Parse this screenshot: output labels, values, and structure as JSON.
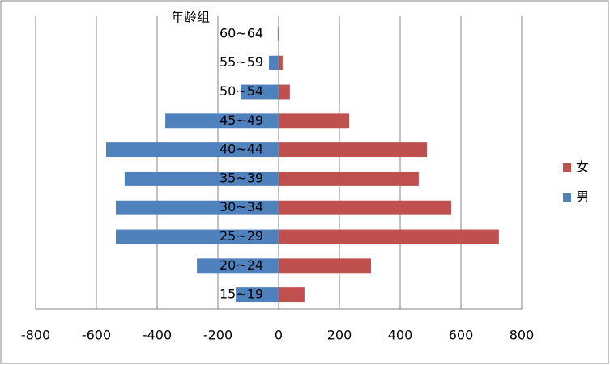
{
  "chart_data": {
    "type": "bar",
    "orientation": "horizontal",
    "stacked_diverging": true,
    "y_axis_title": "年龄组",
    "categories": [
      "15~19",
      "20~24",
      "25~29",
      "30~34",
      "35~39",
      "40~44",
      "45~49",
      "50~54",
      "55~59",
      "60~64"
    ],
    "series": [
      {
        "name": "男",
        "color": "#4f81bd",
        "values": [
          -141,
          -269,
          -536,
          -536,
          -507,
          -568,
          -373,
          -123,
          -32,
          -3
        ]
      },
      {
        "name": "女",
        "color": "#c0504d",
        "values": [
          85,
          304,
          725,
          568,
          461,
          488,
          232,
          37,
          13,
          2
        ]
      }
    ],
    "xlim": [
      -800,
      800
    ],
    "xticks": [
      -800,
      -600,
      -400,
      -200,
      0,
      200,
      400,
      600,
      800
    ],
    "grid": true,
    "legend": "right"
  }
}
